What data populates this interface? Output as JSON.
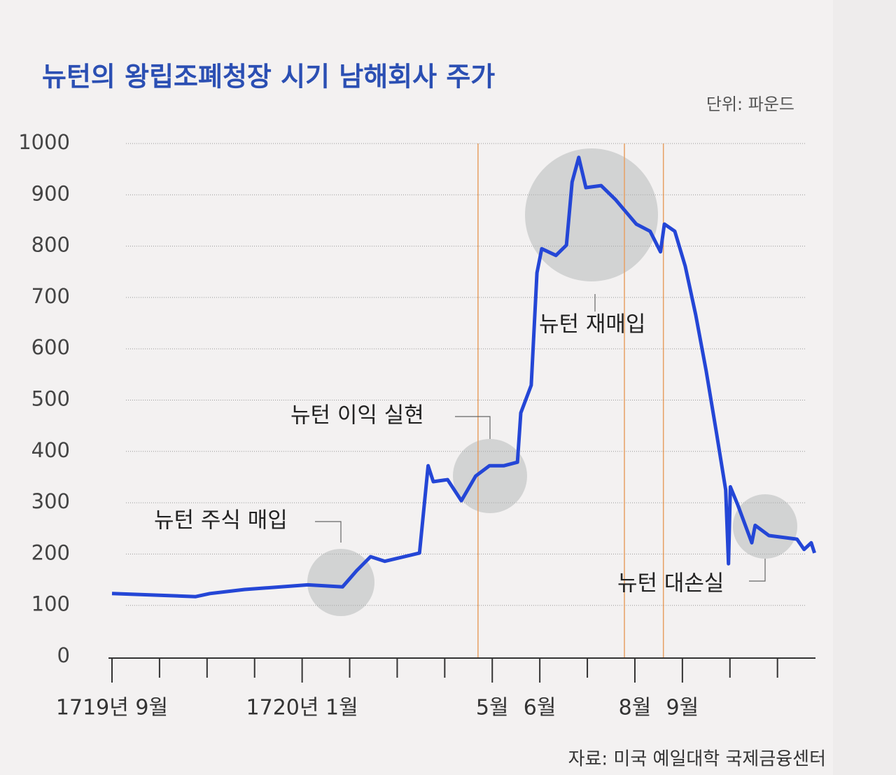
{
  "chart_data": {
    "type": "line",
    "title": "뉴턴의 왕립조폐청장 시기 남해회사 주가",
    "unit": "단위: 파운드",
    "source": "자료: 미국 예일대학 국제금융센터",
    "x": [
      0,
      1.76,
      2.06,
      2.79,
      4.12,
      4.85,
      5.15,
      5.44,
      5.74,
      6.47,
      6.65,
      6.76,
      7.06,
      7.35,
      7.65,
      7.94,
      8.24,
      8.53,
      8.6,
      8.82,
      8.94,
      9.04,
      9.34,
      9.56,
      9.68,
      9.82,
      9.97,
      10.29,
      10.59,
      11.03,
      11.32,
      11.54,
      11.62,
      11.84,
      12.06,
      12.28,
      12.5,
      12.72,
      12.91,
      12.97,
      13.01,
      13.16,
      13.46,
      13.53,
      13.82,
      14.41,
      14.56,
      14.71,
      14.78
    ],
    "series": [
      {
        "color": "#2446d6",
        "values": [
          123,
          117,
          123,
          131,
          140,
          136,
          168,
          195,
          186,
          202,
          372,
          341,
          345,
          304,
          352,
          372,
          372,
          379,
          475,
          529,
          748,
          795,
          782,
          802,
          925,
          973,
          914,
          918,
          891,
          843,
          829,
          789,
          843,
          829,
          761,
          666,
          557,
          434,
          325,
          181,
          331,
          297,
          222,
          256,
          236,
          229,
          209,
          222,
          202
        ]
      }
    ],
    "xlim": [
      0,
      14.8
    ],
    "xticks": [
      {
        "value": 0,
        "label": "1719년 9월"
      },
      {
        "value": 1,
        "label": null
      },
      {
        "value": 2,
        "label": null
      },
      {
        "value": 3,
        "label": null
      },
      {
        "value": 4,
        "label": "1720년 1월"
      },
      {
        "value": 5,
        "label": null
      },
      {
        "value": 6,
        "label": null
      },
      {
        "value": 7,
        "label": null
      },
      {
        "value": 8,
        "label": "5월"
      },
      {
        "value": 9,
        "label": "6월"
      },
      {
        "value": 10,
        "label": null
      },
      {
        "value": 11,
        "label": "8월"
      },
      {
        "value": 12,
        "label": "9월"
      },
      {
        "value": 13,
        "label": null
      },
      {
        "value": 14,
        "label": null
      }
    ],
    "ylim": [
      0,
      1000
    ],
    "yticks": [
      0,
      100,
      200,
      300,
      400,
      500,
      600,
      700,
      800,
      900,
      1000
    ],
    "grid": true,
    "reference_lines": {
      "color": "#e7a063",
      "x": [
        7.7,
        10.78,
        11.6
      ]
    },
    "annotations": [
      "뉴턴 주식 매입",
      "뉴턴 이익 실현",
      "뉴턴 재매입",
      "뉴턴 대손실"
    ]
  }
}
